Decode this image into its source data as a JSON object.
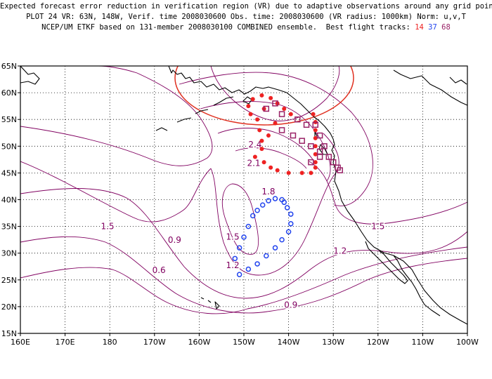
{
  "header": {
    "line1": "Expected forecast error reduction in verification region (VR) due to adaptive observations around any grid point.",
    "line2": "PLOT 24 VR: 63N, 148W, Verif. time 2008030600 Obs. time: 2008030600 (VR radius: 1000km) Norm: u,v,T",
    "line3_prefix": "NCEP/UM ETKF based on 131-member 2008030100 COMBINED ensemble.  Best flight tracks: ",
    "track_a": "14",
    "track_b": "37",
    "track_c": "68"
  },
  "colors": {
    "track_a": "#ee2222",
    "track_b": "#2244ee",
    "track_c": "#992266",
    "contour": "#800060",
    "vr_circle": "#e03020",
    "coast": "#000000",
    "grid": "#000000"
  },
  "chart_data": {
    "type": "map",
    "lon_range": [
      160,
      260
    ],
    "lat_range": [
      15,
      65
    ],
    "x_ticks": [
      "160E",
      "170E",
      "180",
      "170W",
      "160W",
      "150W",
      "140W",
      "130W",
      "120W",
      "110W",
      "100W"
    ],
    "y_ticks": [
      "65N",
      "60N",
      "55N",
      "50N",
      "45N",
      "40N",
      "35N",
      "30N",
      "25N",
      "20N",
      "15N"
    ],
    "grid": "dotted",
    "verification_region": {
      "lat": 63,
      "lon_w": 148,
      "radius_km": 1000
    },
    "contour_labels": [
      {
        "text": "0.6",
        "lon": 169,
        "lat": 26.3
      },
      {
        "text": "0.9",
        "lon": 165.5,
        "lat": 31.9
      },
      {
        "text": "1.5",
        "lon": 180.5,
        "lat": 34.5
      },
      {
        "text": "1.8",
        "lon": 144.5,
        "lat": 41
      },
      {
        "text": "1.5",
        "lon": 152.5,
        "lat": 32.5
      },
      {
        "text": "1.2",
        "lon": 152.5,
        "lat": 27.2
      },
      {
        "text": "0.9",
        "lon": 139.5,
        "lat": 19.8
      },
      {
        "text": "1.2",
        "lon": 128.5,
        "lat": 29.9
      },
      {
        "text": "1.5",
        "lon": 120,
        "lat": 34.5
      },
      {
        "text": "2.4",
        "lon": 147.5,
        "lat": 49.8
      },
      {
        "text": "2.1",
        "lon": 147.8,
        "lat": 46.3
      }
    ],
    "flight_tracks": [
      {
        "name": "14",
        "marker": "dot",
        "points": [
          [
            58.8,
            148
          ],
          [
            59.5,
            146
          ],
          [
            59,
            144
          ],
          [
            58,
            142.5
          ],
          [
            57,
            141
          ],
          [
            56,
            139.5
          ],
          [
            57,
            145.5
          ],
          [
            57.5,
            149
          ],
          [
            56,
            148.5
          ],
          [
            55,
            147
          ],
          [
            54.3,
            143
          ],
          [
            53,
            146.5
          ],
          [
            52,
            144.5
          ],
          [
            51,
            146
          ],
          [
            49.5,
            146
          ],
          [
            48,
            147.5
          ],
          [
            47,
            145.5
          ],
          [
            46,
            144
          ],
          [
            45.5,
            142.5
          ],
          [
            45,
            140
          ],
          [
            45,
            137
          ],
          [
            45,
            135
          ],
          [
            46,
            134
          ],
          [
            47,
            134
          ],
          [
            48.5,
            134
          ],
          [
            50,
            134
          ],
          [
            51.5,
            134
          ],
          [
            53,
            134
          ],
          [
            54.5,
            134
          ],
          [
            56,
            134.5
          ]
        ]
      },
      {
        "name": "37",
        "marker": "ring",
        "points": [
          [
            40,
            141.5
          ],
          [
            40.2,
            143
          ],
          [
            39.8,
            144.5
          ],
          [
            39,
            145.8
          ],
          [
            38,
            147
          ],
          [
            37,
            148
          ],
          [
            35,
            149
          ],
          [
            33,
            150
          ],
          [
            31,
            151
          ],
          [
            29,
            152
          ],
          [
            26,
            151
          ],
          [
            27,
            149
          ],
          [
            28,
            147
          ],
          [
            29.5,
            145
          ],
          [
            31,
            143
          ],
          [
            32.5,
            141.5
          ],
          [
            34,
            140
          ],
          [
            35.5,
            139.5
          ],
          [
            37.3,
            139.5
          ],
          [
            38.5,
            140.3
          ],
          [
            39.5,
            141
          ]
        ]
      },
      {
        "name": "68",
        "marker": "square",
        "points": [
          [
            58,
            143
          ],
          [
            57,
            145
          ],
          [
            56,
            141.5
          ],
          [
            55,
            138
          ],
          [
            54,
            136
          ],
          [
            53,
            141.5
          ],
          [
            52,
            139
          ],
          [
            51,
            137
          ],
          [
            50,
            135
          ],
          [
            49,
            133
          ],
          [
            48,
            131
          ],
          [
            47,
            130
          ],
          [
            46,
            129
          ],
          [
            45.5,
            128.5
          ],
          [
            54,
            134
          ],
          [
            52,
            133
          ],
          [
            50,
            132
          ],
          [
            48,
            133
          ],
          [
            47,
            135
          ]
        ]
      }
    ]
  }
}
